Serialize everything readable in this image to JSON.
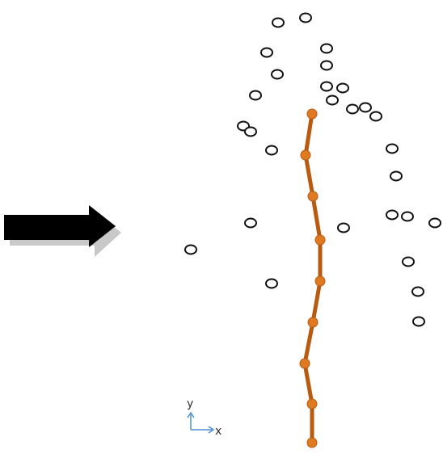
{
  "colors": {
    "background": "#ffffff",
    "arrow_fill": "#000000",
    "arrow_shadow": "#c8c8c8",
    "point_stroke": "#111111",
    "path_line": "#b85a10",
    "path_node": "#e07a20",
    "axis_arrow": "#4a8fd6",
    "axis_text": "#333333"
  },
  "icons": {
    "direction_arrow": "right-arrow-icon",
    "axes_indicator": "xy-axes-icon"
  },
  "axes_indicator": {
    "x_label": "x",
    "y_label": "y"
  }
}
